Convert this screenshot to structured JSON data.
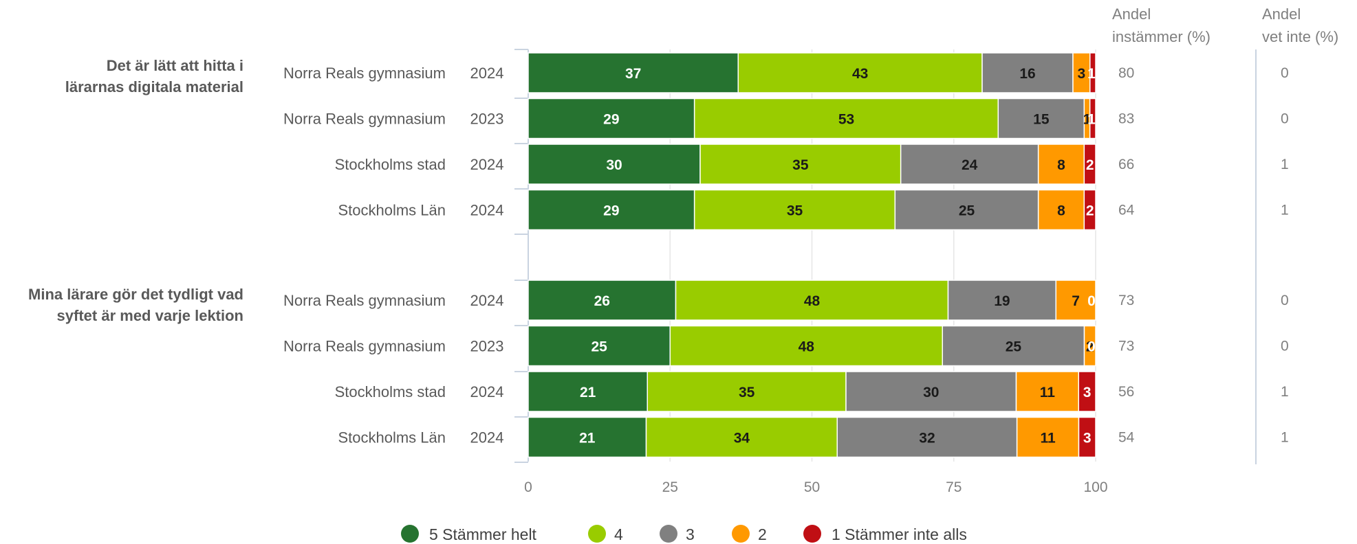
{
  "chart_data": {
    "type": "bar",
    "orientation": "horizontal",
    "stacked": true,
    "xlim": [
      0,
      100
    ],
    "x_ticks": [
      "0",
      "25",
      "50",
      "75",
      "100"
    ],
    "grid": true,
    "legend_position": "bottom-center",
    "series": [
      {
        "name": "5 Stämmer helt",
        "color": "#267330",
        "label_color": "#ffffff"
      },
      {
        "name": "4",
        "color": "#99cc00",
        "label_color": "#1a1a1a"
      },
      {
        "name": "3",
        "color": "#808080",
        "label_color": "#1a1a1a"
      },
      {
        "name": "2",
        "color": "#ff9900",
        "label_color": "#1a1a1a"
      },
      {
        "name": "1 Stämmer inte alls",
        "color": "#c00f14",
        "label_color": "#ffffff"
      }
    ],
    "extra_columns": {
      "agree_header": [
        "Andel",
        "instämmer (%)"
      ],
      "dontknow_header": [
        "Andel",
        "vet inte (%)"
      ]
    },
    "groups": [
      {
        "question": [
          "Det är lätt att hitta i",
          "lärarnas digitala material"
        ],
        "rows": [
          {
            "label": "Norra Reals gymnasium",
            "year": "2024",
            "values": [
              37,
              43,
              16,
              3,
              1
            ],
            "agree": "80",
            "dontknow": "0"
          },
          {
            "label": "Norra Reals gymnasium",
            "year": "2023",
            "values": [
              29,
              53,
              15,
              1,
              1
            ],
            "agree": "83",
            "dontknow": "0"
          },
          {
            "label": "Stockholms stad",
            "year": "2024",
            "values": [
              30,
              35,
              24,
              8,
              2
            ],
            "agree": "66",
            "dontknow": "1"
          },
          {
            "label": "Stockholms Län",
            "year": "2024",
            "values": [
              29,
              35,
              25,
              8,
              2
            ],
            "agree": "64",
            "dontknow": "1"
          }
        ]
      },
      {
        "question": [
          "Mina lärare gör det tydligt vad",
          "syftet är med varje lektion"
        ],
        "rows": [
          {
            "label": "Norra Reals gymnasium",
            "year": "2024",
            "values": [
              26,
              48,
              19,
              7,
              0
            ],
            "agree": "73",
            "dontknow": "0"
          },
          {
            "label": "Norra Reals gymnasium",
            "year": "2023",
            "values": [
              25,
              48,
              25,
              2,
              0
            ],
            "agree": "73",
            "dontknow": "0"
          },
          {
            "label": "Stockholms stad",
            "year": "2024",
            "values": [
              21,
              35,
              30,
              11,
              3
            ],
            "agree": "56",
            "dontknow": "1"
          },
          {
            "label": "Stockholms Län",
            "year": "2024",
            "values": [
              21,
              34,
              32,
              11,
              3
            ],
            "agree": "54",
            "dontknow": "1"
          }
        ]
      }
    ]
  }
}
